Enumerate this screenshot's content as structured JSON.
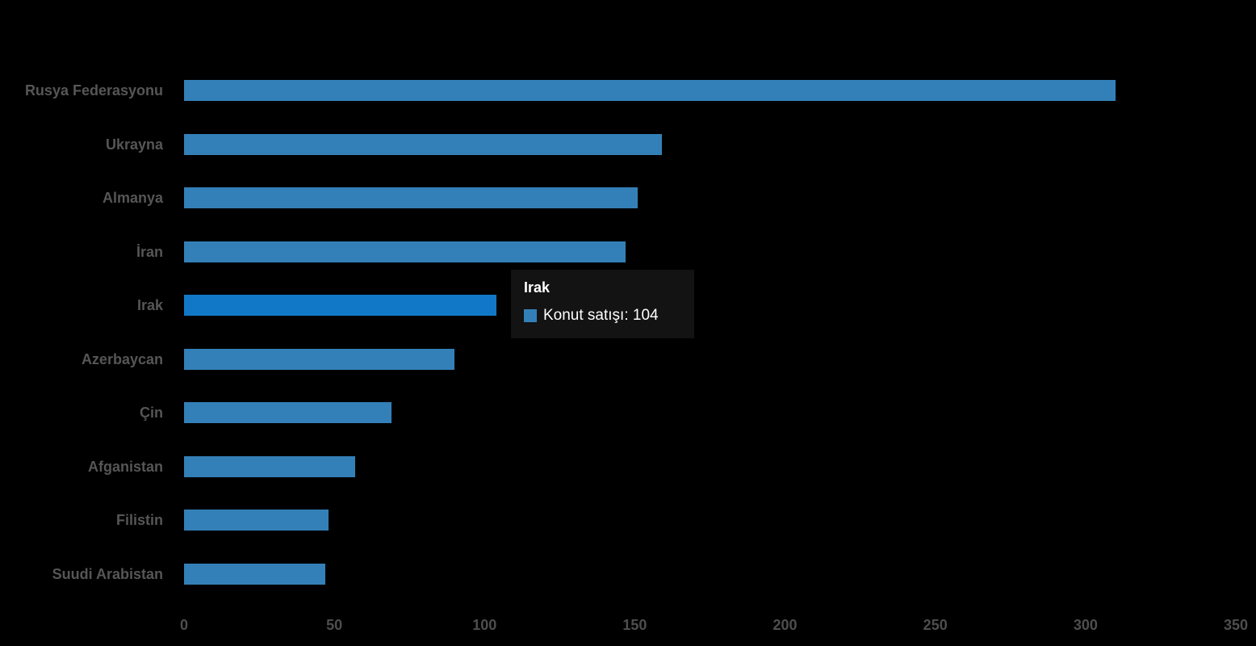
{
  "page": {
    "background": "#000000"
  },
  "chart_data": {
    "type": "bar",
    "orientation": "horizontal",
    "title": "",
    "xlabel": "",
    "ylabel": "",
    "categories": [
      "Rusya Federasyonu",
      "Ukrayna",
      "Almanya",
      "İran",
      "Irak",
      "Azerbaycan",
      "Çin",
      "Afganistan",
      "Filistin",
      "Suudi Arabistan"
    ],
    "series": [
      {
        "name": "Konut satışı",
        "values": [
          310,
          159,
          151,
          147,
          104,
          90,
          69,
          57,
          48,
          47
        ]
      }
    ],
    "xlim": [
      0,
      350
    ],
    "x_ticks": [
      0,
      50,
      100,
      150,
      200,
      250,
      300,
      350
    ],
    "x_tick_labels": [
      "0",
      "50",
      "100",
      "150",
      "200",
      "250",
      "300",
      "350"
    ],
    "grid": false,
    "legend": false,
    "highlight_index": 4,
    "colors": {
      "bar": "#3380B8",
      "bar_highlight": "#1178C8",
      "category_label": "#565656",
      "tick_label": "#4E4E4E",
      "background": "#000000"
    }
  },
  "tooltip": {
    "title": "Irak",
    "series_label": "Konut satışı",
    "value": "104",
    "text": "Konut satışı: 104",
    "swatch_color": "#3380B8",
    "background": "#131313",
    "text_color": "#ffffff"
  }
}
